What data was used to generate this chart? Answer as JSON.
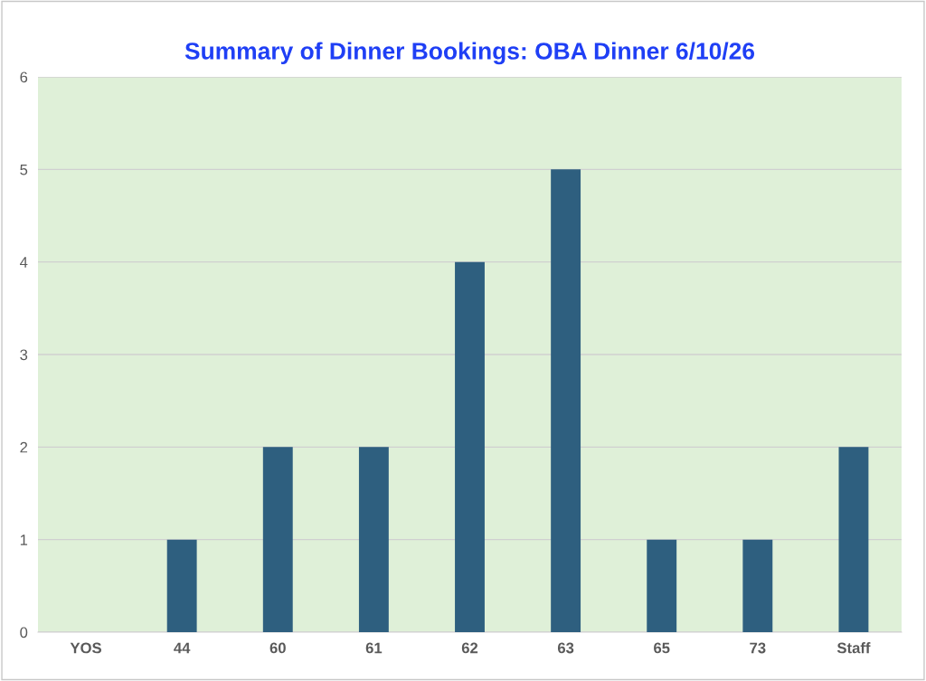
{
  "chart_data": {
    "type": "bar",
    "title": "Summary of Dinner Bookings: OBA Dinner 6/10/26",
    "categories": [
      "YOS",
      "44",
      "60",
      "61",
      "62",
      "63",
      "65",
      "73",
      "Staff"
    ],
    "values": [
      null,
      1,
      2,
      2,
      4,
      5,
      1,
      1,
      2
    ],
    "color": "#2e5f7f",
    "ylim": [
      0,
      6
    ],
    "yticks": [
      0,
      1,
      2,
      3,
      4,
      5,
      6
    ],
    "grid": "y"
  }
}
